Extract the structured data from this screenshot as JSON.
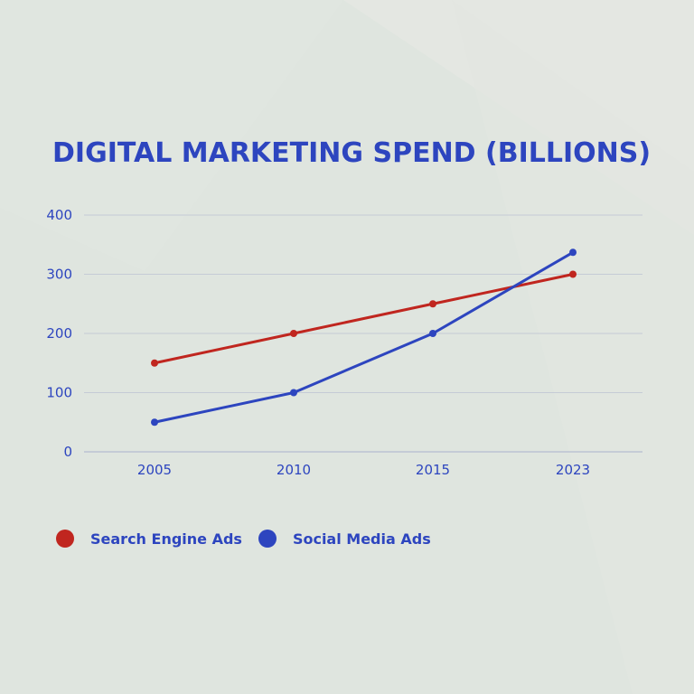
{
  "colors": {
    "background": "#dfe5df",
    "text": "#2d45bf",
    "grid": "#c5cbd6",
    "search_engine": "#c0261f",
    "social_media": "#2d45bf"
  },
  "chart_data": {
    "type": "line",
    "title": "DIGITAL MARKETING SPEND (BILLIONS)",
    "xlabel": "",
    "ylabel": "",
    "categories": [
      "2005",
      "2010",
      "2015",
      "2023"
    ],
    "y_ticks": [
      "0",
      "100",
      "200",
      "300",
      "400"
    ],
    "ylim": [
      0,
      400
    ],
    "grid": true,
    "legend_position": "bottom-left",
    "series": [
      {
        "name": "Search Engine Ads",
        "values": [
          150,
          200,
          250,
          300
        ],
        "color": "#c0261f"
      },
      {
        "name": "Social Media Ads",
        "values": [
          50,
          100,
          200,
          337
        ],
        "color": "#2d45bf"
      }
    ]
  }
}
